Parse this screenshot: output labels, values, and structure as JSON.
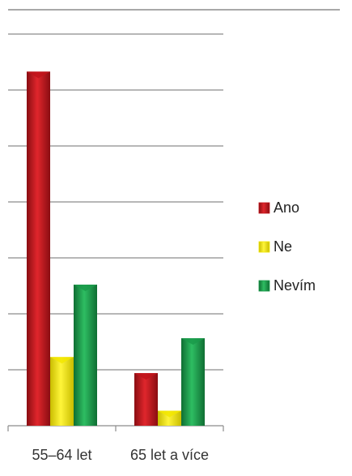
{
  "chart_data": {
    "type": "bar",
    "categories": [
      "55–64 let",
      "65 let a více"
    ],
    "series": [
      {
        "name": "Ano",
        "values": [
          66,
          9.8
        ],
        "color": "#c0141b"
      },
      {
        "name": "Ne",
        "values": [
          12.8,
          2.8
        ],
        "color": "#f2e600"
      },
      {
        "name": "Nevím",
        "values": [
          26.3,
          16.3
        ],
        "color": "#1a9a4a"
      }
    ],
    "ylim": [
      0,
      73
    ],
    "y_tick_count": 7,
    "grid": true,
    "y_tick_labels_shown": false,
    "legend_position": "right",
    "title": "",
    "xlabel": "",
    "ylabel": ""
  }
}
